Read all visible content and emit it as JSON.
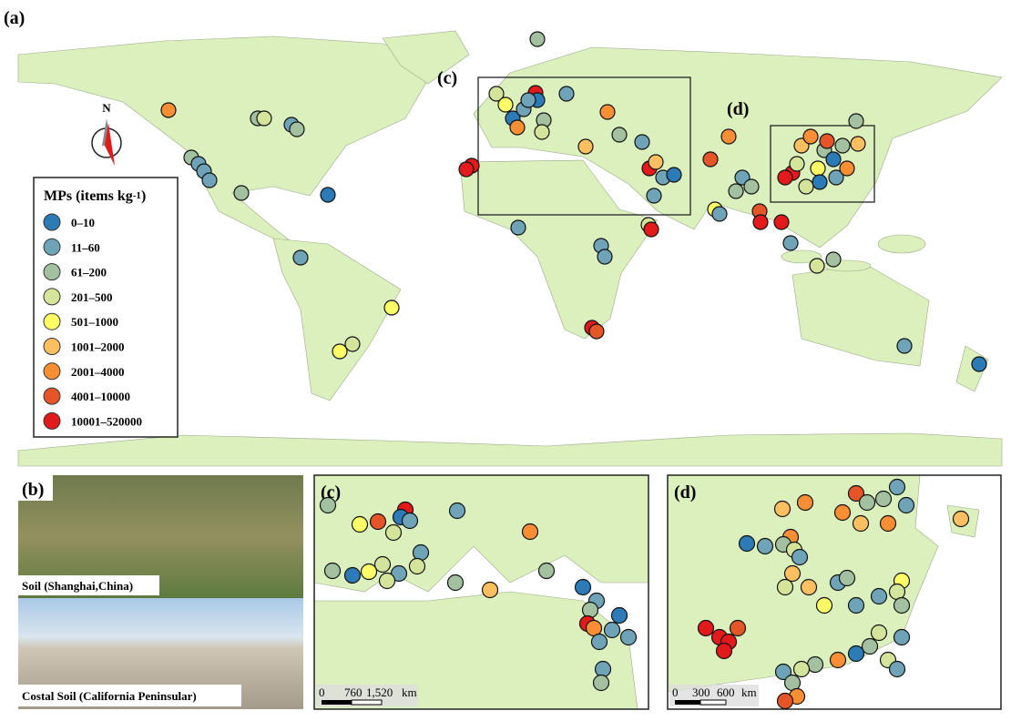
{
  "panels": {
    "a": "(a)",
    "b": "(b)",
    "c": "(c)",
    "d": "(d)",
    "c_box": "(c)",
    "d_box": "(d)"
  },
  "compass": "N",
  "legend": {
    "title": "MPs (items kg",
    "title_sup": "-1",
    "title_end": ")",
    "items": [
      {
        "label": "0–10",
        "color": "#2c7bb6"
      },
      {
        "label": "11–60",
        "color": "#6fa3b8"
      },
      {
        "label": "61–200",
        "color": "#a3c1a0"
      },
      {
        "label": "201–500",
        "color": "#d4e49a"
      },
      {
        "label": "501–1000",
        "color": "#ffff66"
      },
      {
        "label": "1001–2000",
        "color": "#fdbf5f"
      },
      {
        "label": "2001–4000",
        "color": "#f98e35"
      },
      {
        "label": "4001–10000",
        "color": "#e65528"
      },
      {
        "label": "10001–520000",
        "color": "#e31a1c"
      }
    ]
  },
  "photos": {
    "top_caption": "Soil (Shanghai,China)",
    "bottom_caption": "Costal Soil (California Peninsular)"
  },
  "scalebar_c": {
    "zero": "0",
    "mid": "760",
    "end": "1,520",
    "unit": "km"
  },
  "scalebar_d": {
    "zero": "0",
    "mid": "300",
    "end": "600",
    "unit": "km"
  }
}
